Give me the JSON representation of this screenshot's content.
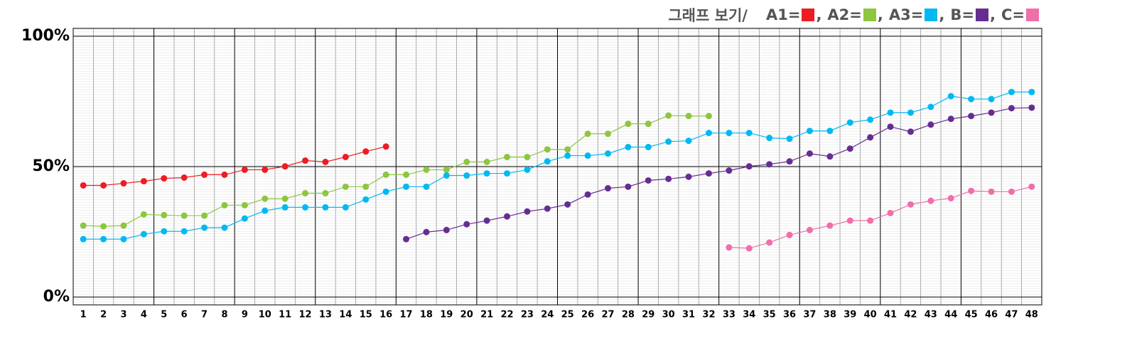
{
  "chart_data": {
    "type": "line",
    "title": "그래프 보기/",
    "categories": [
      "1",
      "2",
      "3",
      "4",
      "5",
      "6",
      "7",
      "8",
      "9",
      "10",
      "11",
      "12",
      "13",
      "14",
      "15",
      "16",
      "17",
      "18",
      "19",
      "20",
      "21",
      "22",
      "23",
      "24",
      "25",
      "26",
      "27",
      "28",
      "29",
      "30",
      "31",
      "32",
      "33",
      "34",
      "35",
      "36",
      "37",
      "38",
      "39",
      "40",
      "41",
      "42",
      "43",
      "44",
      "45",
      "46",
      "47",
      "48"
    ],
    "series": [
      {
        "name": "A1",
        "color": "#ed1c24",
        "values": [
          42.8,
          42.8,
          43.6,
          44.4,
          45.5,
          45.8,
          46.9,
          46.9,
          48.8,
          48.8,
          50.1,
          52.3,
          51.8,
          53.7,
          55.8,
          57.7,
          null,
          null,
          null,
          null,
          null,
          null,
          null,
          null,
          null,
          null,
          null,
          null,
          null,
          null,
          null,
          null,
          null,
          null,
          null,
          null,
          null,
          null,
          null,
          null,
          null,
          null,
          null,
          null,
          null,
          null,
          null,
          null
        ]
      },
      {
        "name": "A2",
        "color": "#8dc63f",
        "values": [
          27.4,
          27.1,
          27.4,
          31.7,
          31.4,
          31.2,
          31.2,
          35.2,
          35.2,
          37.7,
          37.7,
          39.8,
          39.8,
          42.3,
          42.3,
          46.9,
          46.9,
          48.8,
          48.8,
          51.8,
          51.8,
          53.7,
          53.7,
          56.6,
          56.6,
          62.6,
          62.6,
          66.4,
          66.4,
          69.6,
          69.4,
          69.4,
          null,
          null,
          null,
          null,
          null,
          null,
          null,
          null,
          null,
          null,
          null,
          null,
          null,
          null,
          null,
          null
        ]
      },
      {
        "name": "A3",
        "color": "#00b9f1",
        "values": [
          22.2,
          22.2,
          22.2,
          24.1,
          25.2,
          25.2,
          26.6,
          26.6,
          30.1,
          33.1,
          34.4,
          34.4,
          34.4,
          34.4,
          37.4,
          40.4,
          42.3,
          42.3,
          46.6,
          46.6,
          47.4,
          47.4,
          48.8,
          52.0,
          54.2,
          54.2,
          55.0,
          57.5,
          57.5,
          59.6,
          59.9,
          62.9,
          62.9,
          62.9,
          61.0,
          60.7,
          63.7,
          63.7,
          66.9,
          68.0,
          70.7,
          70.7,
          72.9,
          77.0,
          75.9,
          75.9,
          78.6,
          78.6
        ]
      },
      {
        "name": "B",
        "color": "#662d91",
        "values": [
          null,
          null,
          null,
          null,
          null,
          null,
          null,
          null,
          null,
          null,
          null,
          null,
          null,
          null,
          null,
          null,
          22.2,
          24.9,
          25.7,
          27.9,
          29.3,
          30.9,
          32.8,
          33.9,
          35.5,
          39.3,
          41.7,
          42.3,
          44.7,
          45.3,
          46.1,
          47.4,
          48.5,
          50.1,
          50.9,
          52.0,
          55.0,
          53.9,
          56.9,
          61.2,
          65.3,
          63.4,
          66.1,
          68.3,
          69.4,
          70.7,
          72.4,
          72.6
        ]
      },
      {
        "name": "C",
        "color": "#f06eaa",
        "values": [
          null,
          null,
          null,
          null,
          null,
          null,
          null,
          null,
          null,
          null,
          null,
          null,
          null,
          null,
          null,
          null,
          null,
          null,
          null,
          null,
          null,
          null,
          null,
          null,
          null,
          null,
          null,
          null,
          null,
          null,
          null,
          null,
          19.0,
          18.7,
          20.9,
          23.8,
          25.7,
          27.4,
          29.3,
          29.3,
          32.2,
          35.5,
          36.9,
          37.9,
          40.7,
          40.4,
          40.4,
          42.3
        ]
      }
    ],
    "ylim": [
      -3,
      103
    ],
    "yticks": [
      {
        "value": 0,
        "label": "0%"
      },
      {
        "value": 50,
        "label": "50%"
      },
      {
        "value": 100,
        "label": "100%"
      }
    ],
    "grid": true,
    "legend": "top-right"
  }
}
